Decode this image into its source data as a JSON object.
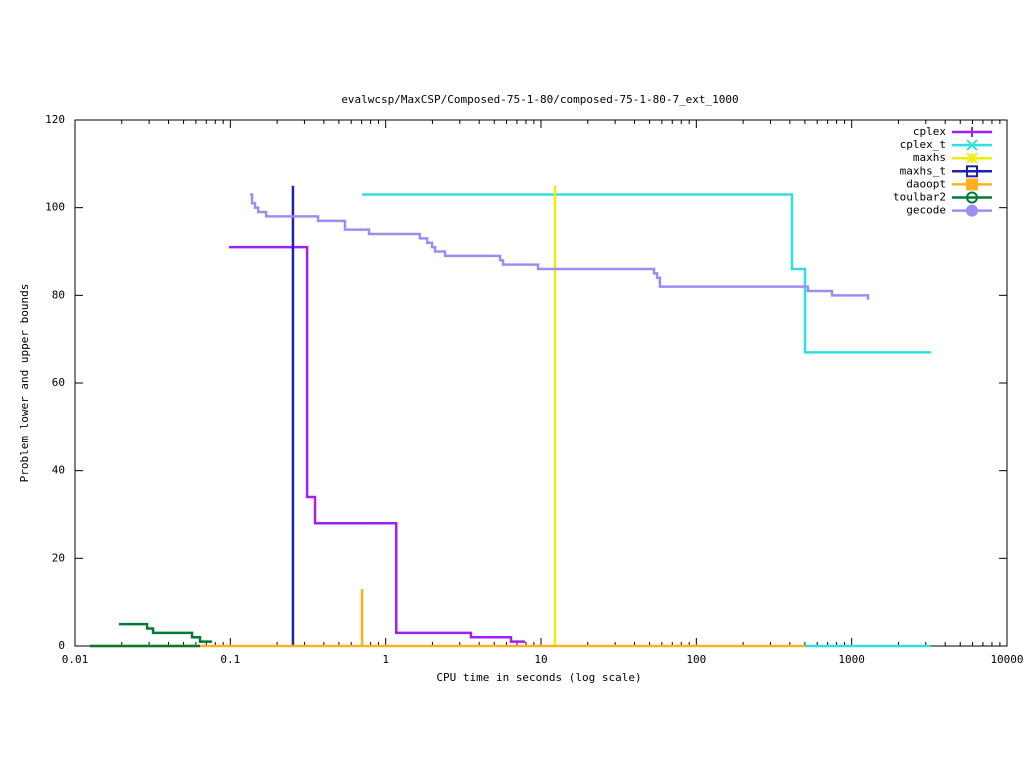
{
  "chart_data": {
    "type": "line",
    "title": "evalwcsp/MaxCSP/Composed-75-1-80/composed-75-1-80-7_ext_1000",
    "x_label": "CPU time in seconds (log scale)",
    "y_label": "Problem lower and upper bounds",
    "x_log": true,
    "step": true,
    "legend": "top-right",
    "xlim": [
      0.01,
      10000
    ],
    "xticks": [
      0.01,
      0.1,
      1,
      10,
      100,
      1000,
      10000
    ],
    "ylim": [
      0,
      120
    ],
    "yticks": [
      0,
      20,
      40,
      60,
      80,
      100,
      120
    ],
    "series": [
      {
        "name": "cplex",
        "color": "#a020f0",
        "marker": "plus",
        "x": [
          0.098,
          0.312,
          0.351,
          1.17,
          3.54,
          6.41,
          7.9
        ],
        "values": [
          91,
          34,
          28,
          3,
          2,
          1,
          1
        ]
      },
      {
        "name": "cplex_t",
        "color": "#30e0e0",
        "marker": "cross",
        "x": [
          0.705,
          413,
          501,
          3243,
          null,
          501,
          3243
        ],
        "values": [
          103,
          86,
          67,
          67,
          null,
          0,
          0
        ]
      },
      {
        "name": "maxhs",
        "color": "#eeee00",
        "marker": "star",
        "x": [
          12.3,
          12.3
        ],
        "values": [
          0,
          105
        ]
      },
      {
        "name": "maxhs_t",
        "color": "#2020b0",
        "marker": "square",
        "x": [
          0.253,
          0.253
        ],
        "values": [
          0,
          105
        ]
      },
      {
        "name": "daoopt",
        "color": "#ffb020",
        "marker": "filled-square",
        "x": [
          0.0125,
          501,
          null,
          0.705,
          0.705
        ],
        "values": [
          0,
          0,
          null,
          0,
          13
        ]
      },
      {
        "name": "toulbar2",
        "color": "#007838",
        "marker": "circle",
        "x": [
          0.0192,
          0.0291,
          0.0318,
          0.0567,
          0.0638,
          0.0762,
          null,
          0.0125,
          0.0638
        ],
        "values": [
          5,
          4,
          3,
          2,
          1,
          1,
          null,
          0,
          0
        ]
      },
      {
        "name": "gecode",
        "color": "#a08cf0",
        "marker": "filled-circle",
        "x": [
          0.134,
          0.138,
          0.144,
          0.151,
          0.17,
          0.367,
          0.547,
          0.781,
          1.66,
          1.85,
          1.99,
          2.08,
          2.41,
          5.45,
          5.69,
          9.57,
          53.4,
          55.9,
          58.3,
          523,
          747,
          1274
        ],
        "values": [
          103,
          101,
          100,
          99,
          98,
          97,
          95,
          94,
          93,
          92,
          91,
          90,
          89,
          88,
          87,
          86,
          85,
          84,
          82,
          81,
          80,
          79
        ]
      }
    ]
  }
}
